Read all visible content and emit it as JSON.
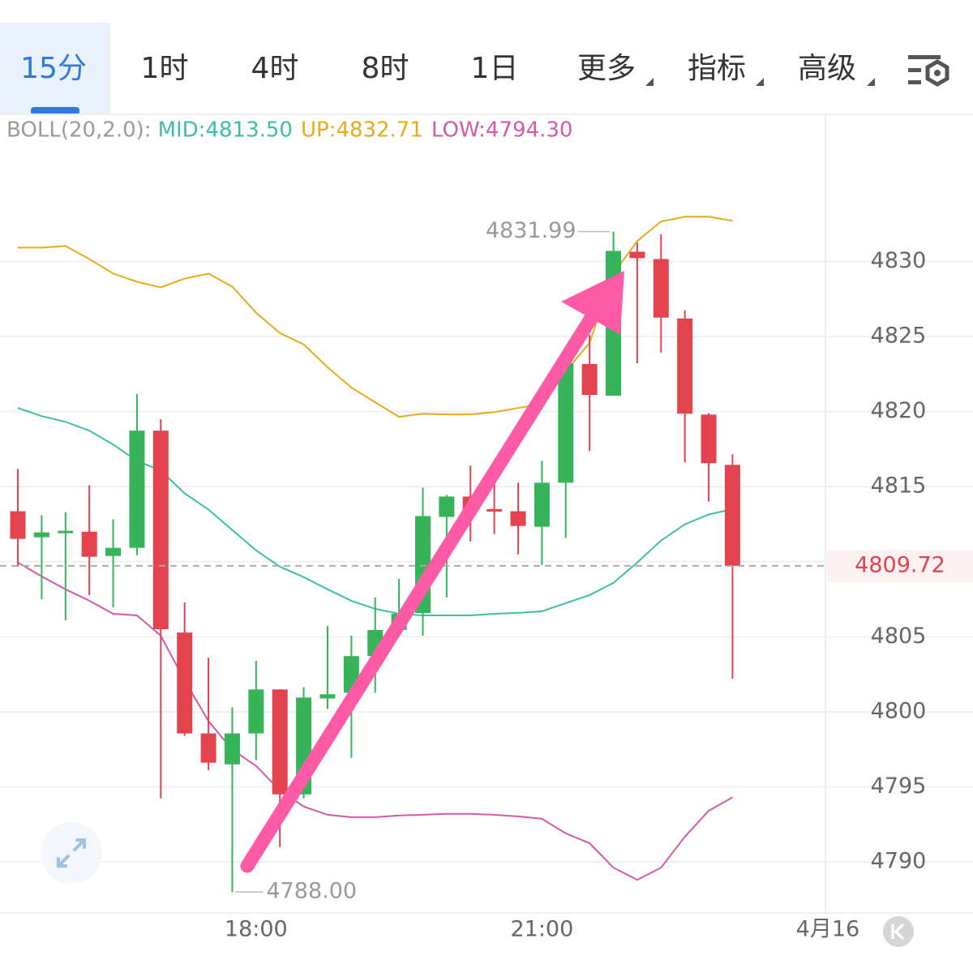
{
  "tabs": [
    "15分",
    "1时",
    "4时",
    "8时",
    "1日",
    "更多",
    "指标",
    "高级"
  ],
  "chart_data": {
    "type": "candlestick",
    "categories": [
      null,
      null,
      null,
      null,
      null,
      null,
      null,
      null,
      null,
      null,
      null,
      null,
      null,
      null,
      null,
      null,
      null,
      null,
      null,
      null,
      null,
      null,
      null,
      null,
      null,
      null,
      null,
      null,
      null,
      null,
      null
    ],
    "open": [
      4813.36,
      4811.63,
      4811.9,
      4812.0,
      4810.38,
      4810.92,
      4818.73,
      4805.28,
      4798.56,
      4796.5,
      4798.56,
      4801.49,
      4794.5,
      4800.89,
      4801.27,
      4803.71,
      4805.45,
      4806.58,
      4812.98,
      4814.34,
      4813.5,
      4813.36,
      4812.33,
      4815.26,
      4823.17,
      4821.06,
      4830.65,
      4830.16,
      4826.2,
      4819.8,
      4816.45
    ],
    "high": [
      4816.18,
      4813.09,
      4813.3,
      4815.1,
      4812.82,
      4821.17,
      4819.49,
      4807.29,
      4803.6,
      4800.3,
      4803.39,
      4801.49,
      4801.65,
      4805.72,
      4805.07,
      4807.62,
      4808.86,
      4814.93,
      4814.45,
      4816.4,
      4815.64,
      4815.26,
      4816.72,
      4823.3,
      4825.12,
      4831.99,
      4831.25,
      4831.8,
      4826.75,
      4819.9,
      4817.15
    ],
    "low": [
      4809.67,
      4807.5,
      4806.1,
      4807.78,
      4806.96,
      4810.43,
      4794.23,
      4798.4,
      4796.12,
      4788.0,
      4796.78,
      4790.98,
      4794.23,
      4800.19,
      4796.94,
      4801.27,
      4805.07,
      4805.07,
      4807.62,
      4811.35,
      4811.84,
      4810.49,
      4809.78,
      4811.57,
      4817.37,
      4821.06,
      4823.22,
      4823.93,
      4816.61,
      4814.01,
      4802.2
    ],
    "close": [
      4811.52,
      4811.95,
      4812.06,
      4810.33,
      4810.92,
      4818.73,
      4805.5,
      4798.56,
      4796.61,
      4798.56,
      4801.49,
      4794.5,
      4800.95,
      4801.17,
      4803.71,
      4805.45,
      4806.53,
      4813.04,
      4814.34,
      4813.41,
      4813.45,
      4812.38,
      4815.26,
      4823.22,
      4821.11,
      4830.7,
      4830.22,
      4826.26,
      4819.86,
      4816.56,
      4809.72
    ],
    "up_color": "#37b45a",
    "down_color": "#e2434f",
    "indicator": {
      "label": "BOLL(20,2.0):",
      "series": [
        {
          "name": "MID:4813.50",
          "color": "#3dbfa6",
          "values": [
            4820.24,
            4819.7,
            4819.32,
            4818.73,
            4817.8,
            4816.72,
            4816.07,
            4814.55,
            4813.47,
            4812.11,
            4810.76,
            4809.67,
            4808.97,
            4808.16,
            4807.4,
            4806.86,
            4806.53,
            4806.42,
            4806.42,
            4806.42,
            4806.53,
            4806.59,
            4806.69,
            4807.24,
            4807.78,
            4808.59,
            4809.95,
            4811.41,
            4812.49,
            4813.14,
            4813.5
          ]
        },
        {
          "name": "UP:4832.71",
          "color": "#e6ac1e",
          "values": [
            4830.92,
            4830.92,
            4831.03,
            4830.16,
            4829.19,
            4828.64,
            4828.27,
            4828.86,
            4829.19,
            4828.32,
            4826.59,
            4825.23,
            4824.47,
            4822.95,
            4821.6,
            4820.62,
            4819.65,
            4819.86,
            4819.81,
            4819.81,
            4819.97,
            4820.24,
            4820.51,
            4822.68,
            4824.58,
            4829.19,
            4831.36,
            4832.66,
            4832.98,
            4832.98,
            4832.71
          ]
        },
        {
          "name": "LOW:4794.30",
          "color": "#d45aa6",
          "values": [
            4809.95,
            4809.02,
            4808.16,
            4807.4,
            4806.53,
            4806.42,
            4805.07,
            4802.09,
            4799.38,
            4797.48,
            4796.4,
            4794.77,
            4793.69,
            4793.14,
            4792.98,
            4792.98,
            4793.09,
            4793.14,
            4793.2,
            4793.2,
            4793.14,
            4793.03,
            4792.87,
            4791.9,
            4791.25,
            4789.62,
            4788.81,
            4789.62,
            4791.68,
            4793.41,
            4794.3
          ]
        }
      ]
    },
    "ylim": [
      4786.6,
      4839.8
    ],
    "yticks": [
      4790,
      4795,
      4800,
      4805,
      4810,
      4815,
      4820,
      4825,
      4830
    ],
    "xlim": [
      -0.75,
      33.9
    ],
    "xticks": [
      {
        "value": 10,
        "label": "18:00"
      },
      {
        "value": 22,
        "label": "21:00"
      },
      {
        "value": 34,
        "label": "4月16"
      }
    ],
    "grid": true,
    "high_label": 4831.99,
    "low_label": {
      "value": 4788.0,
      "label": "4788.00"
    },
    "last_price": 4809.72
  }
}
